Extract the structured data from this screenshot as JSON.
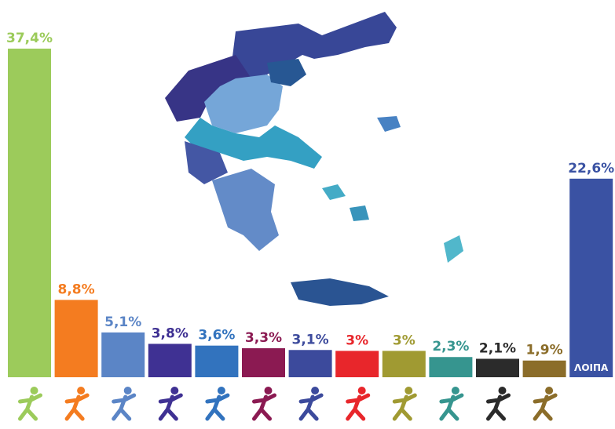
{
  "chart_data": {
    "type": "bar",
    "categories": [
      null,
      null,
      null,
      null,
      null,
      null,
      null,
      null,
      null,
      null,
      null,
      null,
      "ΛΟΙΠΑ"
    ],
    "values": [
      37.4,
      8.8,
      5.1,
      3.8,
      3.6,
      3.3,
      3.1,
      3,
      3,
      2.3,
      2.1,
      1.9,
      22.6
    ],
    "value_labels": [
      "37,4%",
      "8,8%",
      "5,1%",
      "3,8%",
      "3,6%",
      "3,3%",
      "3,1%",
      "3%",
      "3%",
      "2,3%",
      "2,1%",
      "1,9%",
      "22,6%"
    ],
    "colors": [
      "#9ccb5b",
      "#f47c20",
      "#5b85c6",
      "#3f3193",
      "#3273be",
      "#8b1a52",
      "#3c4a9c",
      "#e8262b",
      "#a09a32",
      "#36958f",
      "#2b2b2b",
      "#8b6d2a",
      "#3a52a3"
    ]
  }
}
